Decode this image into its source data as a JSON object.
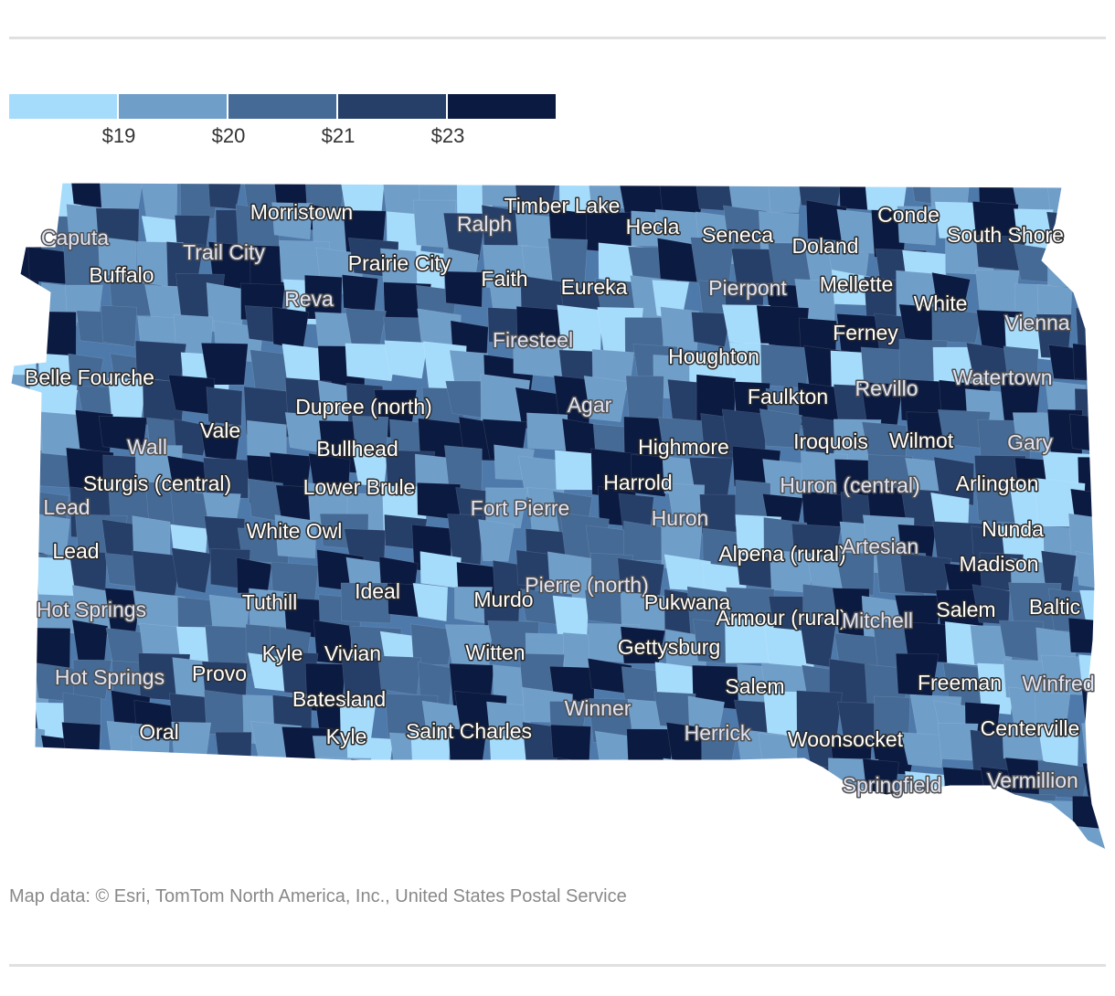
{
  "legend": {
    "colors": [
      "#a6dcfb",
      "#6f9ec9",
      "#446a95",
      "#263f69",
      "#0b1a40"
    ],
    "ticks": [
      "$19",
      "$20",
      "$21",
      "$23"
    ]
  },
  "map": {
    "region_fill_default": "#4e7aab",
    "labels": [
      "Morristown",
      "Caputa",
      "Trail City",
      "Buffalo",
      "Prairie City",
      "Ralph",
      "Timber Lake",
      "Hecla",
      "Seneca",
      "Doland",
      "Conde",
      "South Shore",
      "Reva",
      "Faith",
      "Eureka",
      "Pierpont",
      "Mellette",
      "White",
      "Vienna",
      "Firesteel",
      "Houghton",
      "Ferney",
      "Belle Fourche",
      "Dupree (north)",
      "Agar",
      "Faulkton",
      "Revillo",
      "Watertown",
      "Vale",
      "Wall",
      "Bullhead",
      "Highmore",
      "Iroquois",
      "Wilmot",
      "Gary",
      "Sturgis (central)",
      "Lower Brule",
      "Harrold",
      "Huron (central)",
      "Arlington",
      "Lead",
      "Fort Pierre",
      "Huron",
      "Nunda",
      "White Owl",
      "Alpena (rural)",
      "Artesian",
      "Lead",
      "Madison",
      "Ideal",
      "Murdo",
      "Pierre (north)",
      "Pukwana",
      "Tuthill",
      "Hot Springs",
      "Armour (rural)",
      "Mitchell",
      "Salem",
      "Baltic",
      "Kyle",
      "Vivian",
      "Witten",
      "Gettysburg",
      "Provo",
      "Hot Springs",
      "Salem",
      "Freeman",
      "Winfred",
      "Batesland",
      "Winner",
      "Oral",
      "Saint Charles",
      "Kyle",
      "Herrick",
      "Woonsocket",
      "Centerville",
      "Springfield",
      "Vermillion"
    ]
  },
  "credit": "Map data: © Esri, TomTom North America, Inc., United States Postal Service"
}
